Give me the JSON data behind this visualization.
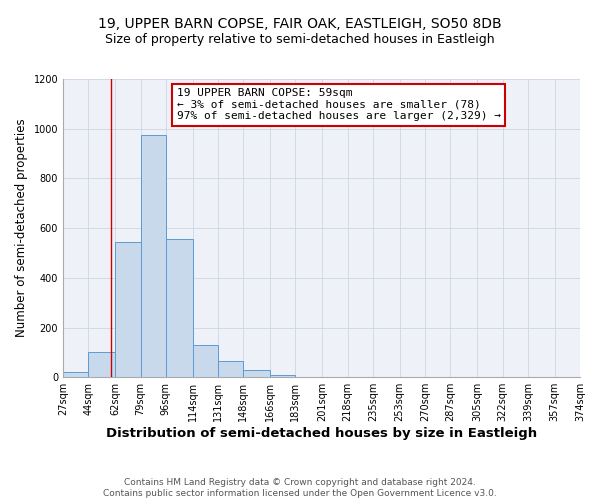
{
  "title": "19, UPPER BARN COPSE, FAIR OAK, EASTLEIGH, SO50 8DB",
  "subtitle": "Size of property relative to semi-detached houses in Eastleigh",
  "xlabel": "Distribution of semi-detached houses by size in Eastleigh",
  "ylabel": "Number of semi-detached properties",
  "footer_line1": "Contains HM Land Registry data © Crown copyright and database right 2024.",
  "footer_line2": "Contains public sector information licensed under the Open Government Licence v3.0.",
  "bin_edges": [
    27,
    44,
    62,
    79,
    96,
    114,
    131,
    148,
    166,
    183,
    201,
    218,
    235,
    253,
    270,
    287,
    305,
    322,
    339,
    357,
    374
  ],
  "bin_labels": [
    "27sqm",
    "44sqm",
    "62sqm",
    "79sqm",
    "96sqm",
    "114sqm",
    "131sqm",
    "148sqm",
    "166sqm",
    "183sqm",
    "201sqm",
    "218sqm",
    "235sqm",
    "253sqm",
    "270sqm",
    "287sqm",
    "305sqm",
    "322sqm",
    "339sqm",
    "357sqm",
    "374sqm"
  ],
  "counts": [
    20,
    100,
    545,
    975,
    555,
    130,
    65,
    30,
    10,
    0,
    0,
    0,
    0,
    0,
    0,
    0,
    0,
    0,
    0,
    0
  ],
  "bar_facecolor": "#c9d9ec",
  "bar_edgecolor": "#5b9bd5",
  "vline_x": 59,
  "vline_color": "#cc0000",
  "annotation_title": "19 UPPER BARN COPSE: 59sqm",
  "annotation_line2": "← 3% of semi-detached houses are smaller (78)",
  "annotation_line3": "97% of semi-detached houses are larger (2,329) →",
  "annotation_box_edgecolor": "#cc0000",
  "ylim": [
    0,
    1200
  ],
  "yticks": [
    0,
    200,
    400,
    600,
    800,
    1000,
    1200
  ],
  "background_color": "#eef2f8",
  "grid_color": "#c8d0de",
  "title_fontsize": 10,
  "subtitle_fontsize": 9,
  "axis_label_fontsize": 8.5,
  "tick_fontsize": 7,
  "annotation_fontsize": 8,
  "footer_fontsize": 6.5
}
